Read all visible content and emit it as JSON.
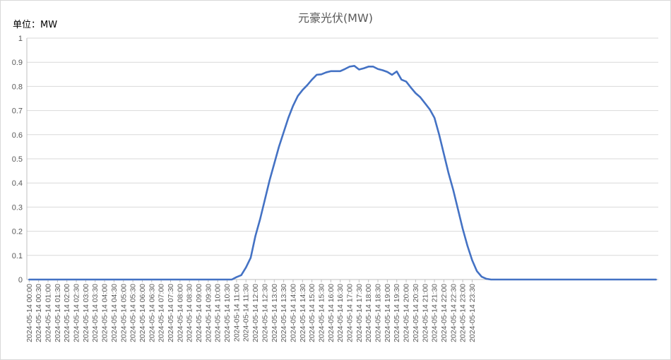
{
  "chart_data": {
    "type": "line",
    "title": "元豪光伏(MW)",
    "unit_label": "单位：MW",
    "xlabel": "",
    "ylabel": "",
    "ylim": [
      0,
      1
    ],
    "yticks": [
      0,
      0.1,
      0.2,
      0.3,
      0.4,
      0.5,
      0.6,
      0.7,
      0.8,
      0.9,
      1
    ],
    "ytick_labels": [
      "0",
      "0.1",
      "0.2",
      "0.3",
      "0.4",
      "0.5",
      "0.6",
      "0.7",
      "0.8",
      "0.9",
      "1"
    ],
    "grid": true,
    "legend": "none",
    "line_color": "#4472C4",
    "grid_color": "#D9D9D9",
    "axis_color": "#BFBFBF",
    "x_tick_labels": [
      "2024-05-14 00:00",
      "2024-05-14 00:30",
      "2024-05-14 01:00",
      "2024-05-14 01:30",
      "2024-05-14 02:00",
      "2024-05-14 02:30",
      "2024-05-14 03:00",
      "2024-05-14 03:30",
      "2024-05-14 04:00",
      "2024-05-14 04:30",
      "2024-05-14 05:00",
      "2024-05-14 05:30",
      "2024-05-14 06:00",
      "2024-05-14 06:30",
      "2024-05-14 07:00",
      "2024-05-14 07:30",
      "2024-05-14 08:00",
      "2024-05-14 08:30",
      "2024-05-14 09:00",
      "2024-05-14 09:30",
      "2024-05-14 10:00",
      "2024-05-14 10:30",
      "2024-05-14 11:00",
      "2024-05-14 11:30",
      "2024-05-14 12:00",
      "2024-05-14 12:30",
      "2024-05-14 13:00",
      "2024-05-14 13:30",
      "2024-05-14 14:00",
      "2024-05-14 14:30",
      "2024-05-14 15:00",
      "2024-05-14 15:30",
      "2024-05-14 16:00",
      "2024-05-14 16:30",
      "2024-05-14 17:00",
      "2024-05-14 17:30",
      "2024-05-14 18:00",
      "2024-05-14 18:30",
      "2024-05-14 19:00",
      "2024-05-14 19:30",
      "2024-05-14 20:00",
      "2024-05-14 20:30",
      "2024-05-14 21:00",
      "2024-05-14 21:30",
      "2024-05-14 22:00",
      "2024-05-14 22:30",
      "2024-05-14 23:00",
      "2024-05-14 23:30"
    ],
    "series": [
      {
        "values": [
          0,
          0,
          0,
          0,
          0,
          0,
          0,
          0,
          0,
          0,
          0,
          0,
          0,
          0,
          0,
          0,
          0,
          0,
          0,
          0,
          0,
          0,
          0,
          0,
          0,
          0,
          0,
          0,
          0,
          0,
          0,
          0,
          0,
          0,
          0,
          0,
          0,
          0,
          0,
          0,
          0,
          0,
          0,
          0,
          0.01,
          0.018,
          0.05,
          0.09,
          0.18,
          0.25,
          0.33,
          0.41,
          0.48,
          0.55,
          0.61,
          0.67,
          0.72,
          0.76,
          0.785,
          0.805,
          0.828,
          0.848,
          0.85,
          0.858,
          0.863,
          0.863,
          0.863,
          0.872,
          0.882,
          0.885,
          0.87,
          0.875,
          0.882,
          0.882,
          0.872,
          0.867,
          0.86,
          0.848,
          0.862,
          0.828,
          0.82,
          0.795,
          0.772,
          0.755,
          0.73,
          0.705,
          0.67,
          0.6,
          0.52,
          0.44,
          0.37,
          0.29,
          0.21,
          0.14,
          0.08,
          0.035,
          0.012,
          0.003,
          0,
          0,
          0,
          0,
          0,
          0,
          0,
          0,
          0,
          0,
          0,
          0,
          0,
          0,
          0,
          0,
          0,
          0,
          0,
          0,
          0,
          0,
          0,
          0,
          0,
          0,
          0,
          0,
          0,
          0,
          0,
          0,
          0,
          0,
          0,
          0
        ]
      }
    ]
  }
}
